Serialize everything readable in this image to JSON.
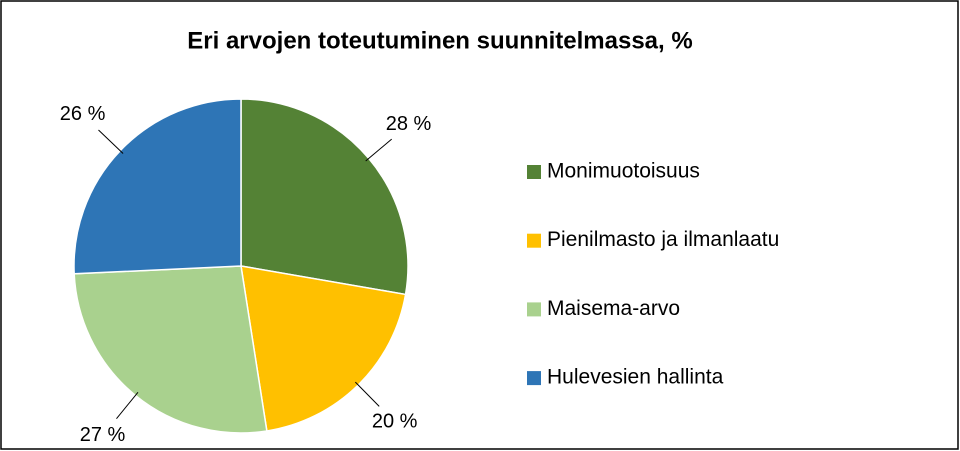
{
  "chart_data": {
    "type": "pie",
    "title": "Eri arvojen toteutuminen suunnitelmassa, %",
    "categories": [
      "Monimuotoisuus",
      "Pienilmasto ja ilmanlaatu",
      "Maisema-arvo",
      "Hulevesien hallinta"
    ],
    "values": [
      28,
      20,
      27,
      26
    ],
    "value_labels": [
      "28 %",
      "20 %",
      "27 %",
      "26 %"
    ],
    "colors": [
      "#548235",
      "#ffc000",
      "#a9d18e",
      "#2e75b6"
    ],
    "legend": "right"
  }
}
